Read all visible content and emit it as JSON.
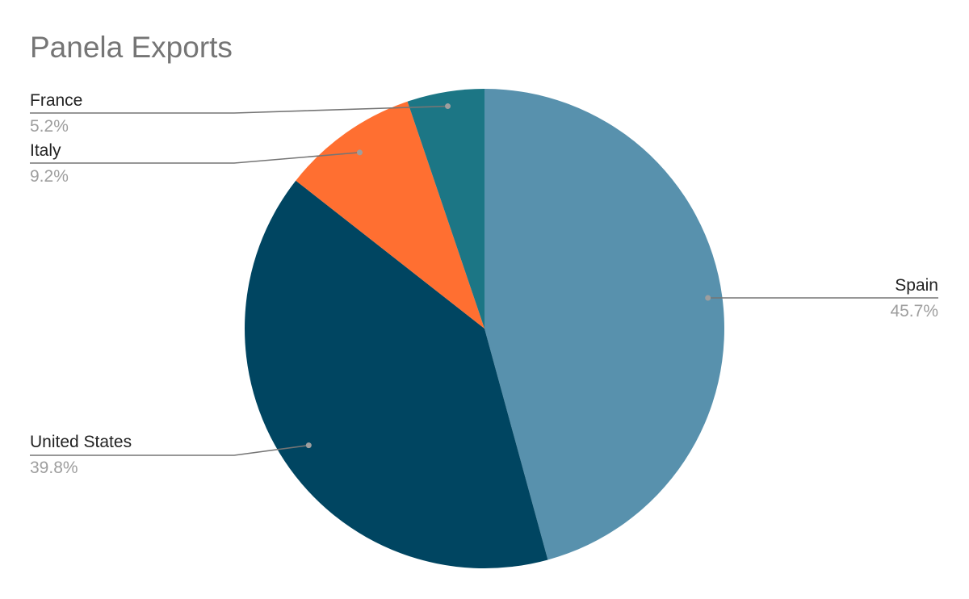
{
  "chart_data": {
    "type": "pie",
    "title": "Panela Exports",
    "start_angle_deg": 0,
    "direction": "clockwise",
    "slices": [
      {
        "label": "Spain",
        "value": 45.7,
        "percent_label": "45.7%",
        "color": "#5891ad"
      },
      {
        "label": "United States",
        "value": 39.8,
        "percent_label": "39.8%",
        "color": "#004561"
      },
      {
        "label": "Italy",
        "value": 9.2,
        "percent_label": "9.2%",
        "color": "#ff6f31"
      },
      {
        "label": "France",
        "value": 5.2,
        "percent_label": "5.2%",
        "color": "#1c7685"
      }
    ],
    "leader_line_color": "#757575",
    "label_placement": "outside with leader lines"
  }
}
